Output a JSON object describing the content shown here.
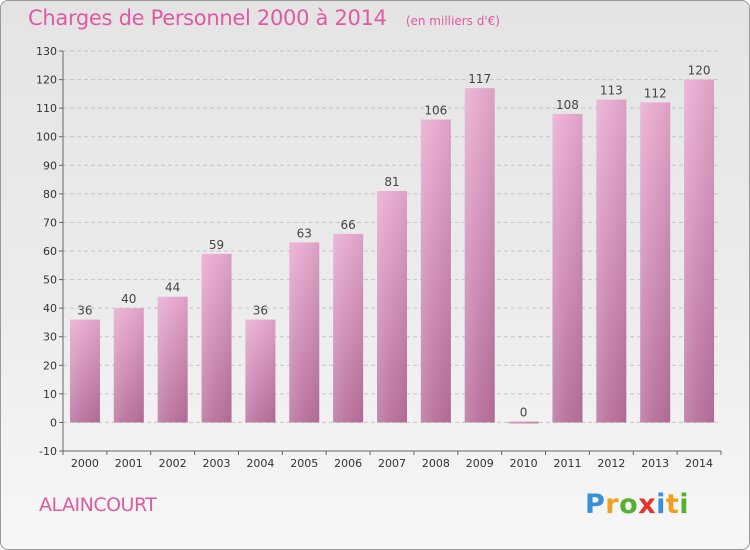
{
  "chart_data": {
    "type": "bar",
    "title": "Charges de Personnel 2000 à 2014",
    "subtitle": "(en milliers d'€)",
    "categories": [
      "2000",
      "2001",
      "2002",
      "2003",
      "2004",
      "2005",
      "2006",
      "2007",
      "2008",
      "2009",
      "2010",
      "2011",
      "2012",
      "2013",
      "2014"
    ],
    "values": [
      36,
      40,
      44,
      59,
      36,
      63,
      66,
      81,
      106,
      117,
      0,
      108,
      113,
      112,
      120
    ],
    "ylim": [
      -10,
      130
    ],
    "yticks": [
      -10,
      0,
      10,
      20,
      30,
      40,
      50,
      60,
      70,
      80,
      90,
      100,
      110,
      120,
      130
    ],
    "grid": true,
    "bar_color": "#d98bba"
  },
  "footer": {
    "commune": "ALAINCOURT",
    "brand_letters": [
      {
        "ch": "P",
        "color": "#3a8fd8"
      },
      {
        "ch": "r",
        "color": "#f0a020"
      },
      {
        "ch": "o",
        "color": "#58b030"
      },
      {
        "ch": "x",
        "color": "#e8322a"
      },
      {
        "ch": "i",
        "color": "#3a8fd8"
      },
      {
        "ch": "t",
        "color": "#f0a020"
      },
      {
        "ch": "i",
        "color": "#58b030"
      }
    ]
  }
}
